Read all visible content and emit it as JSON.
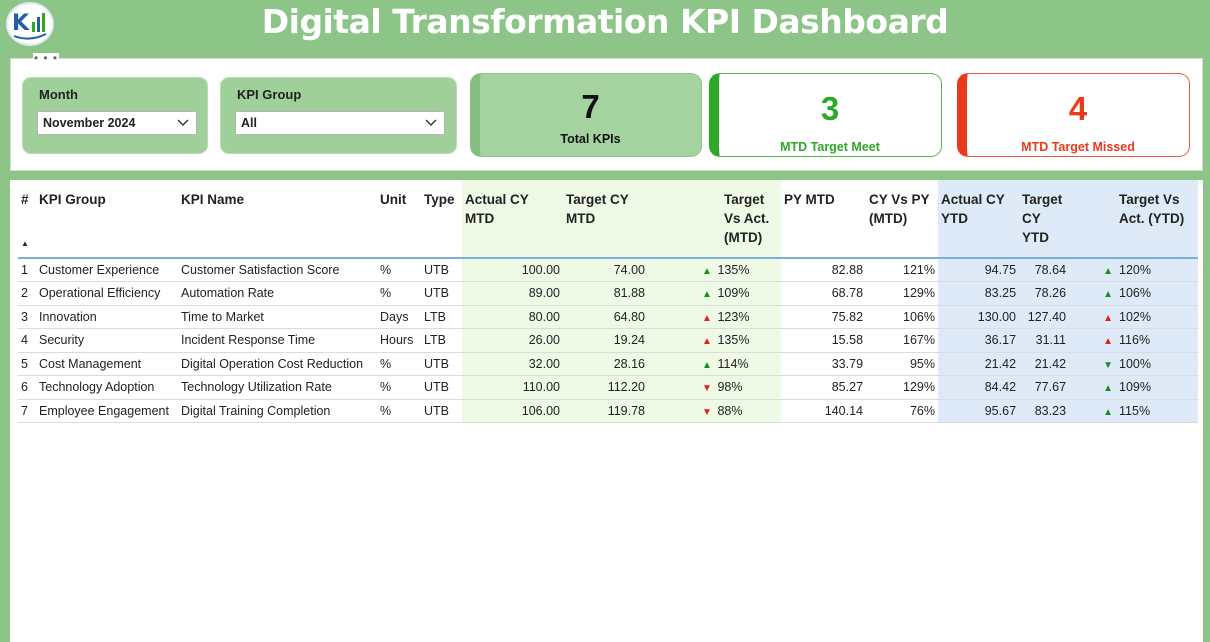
{
  "header": {
    "title": "Digital Transformation KPI Dashboard"
  },
  "filters": {
    "month": {
      "label": "Month",
      "value": "November 2024"
    },
    "kpi_group": {
      "label": "KPI Group",
      "value": "All"
    }
  },
  "cards": {
    "total": {
      "value": "7",
      "label": "Total KPIs"
    },
    "meet": {
      "value": "3",
      "label": "MTD Target Meet"
    },
    "missed": {
      "value": "4",
      "label": "MTD Target Missed"
    }
  },
  "table": {
    "columns": {
      "num": "#",
      "group": "KPI Group",
      "name": "KPI Name",
      "unit": "Unit",
      "type": "Type",
      "actual_mtd": "Actual CY MTD",
      "target_mtd": "Target CY MTD",
      "tva_mtd": "Target Vs Act. (MTD)",
      "py_mtd": "PY MTD",
      "cyvpy_mtd": "CY Vs PY (MTD)",
      "actual_ytd": "Actual CY YTD",
      "target_ytd": "Target CY YTD",
      "tva_ytd": "Target Vs Act. (YTD)"
    },
    "rows": [
      {
        "num": "1",
        "group": "Customer Experience",
        "name": "Customer Satisfaction Score",
        "unit": "%",
        "type": "UTB",
        "actual_mtd": "100.00",
        "target_mtd": "74.00",
        "mtd_arrow": "up-green",
        "tva_mtd": "135%",
        "py_mtd": "82.88",
        "cyvpy_mtd": "121%",
        "actual_ytd": "94.75",
        "target_ytd": "78.64",
        "ytd_arrow": "up-green",
        "tva_ytd": "120%"
      },
      {
        "num": "2",
        "group": "Operational Efficiency",
        "name": "Automation Rate",
        "unit": "%",
        "type": "UTB",
        "actual_mtd": "89.00",
        "target_mtd": "81.88",
        "mtd_arrow": "up-green",
        "tva_mtd": "109%",
        "py_mtd": "68.78",
        "cyvpy_mtd": "129%",
        "actual_ytd": "83.25",
        "target_ytd": "78.26",
        "ytd_arrow": "up-green",
        "tva_ytd": "106%"
      },
      {
        "num": "3",
        "group": "Innovation",
        "name": "Time to Market",
        "unit": "Days",
        "type": "LTB",
        "actual_mtd": "80.00",
        "target_mtd": "64.80",
        "mtd_arrow": "up-red",
        "tva_mtd": "123%",
        "py_mtd": "75.82",
        "cyvpy_mtd": "106%",
        "actual_ytd": "130.00",
        "target_ytd": "127.40",
        "ytd_arrow": "up-red",
        "tva_ytd": "102%"
      },
      {
        "num": "4",
        "group": "Security",
        "name": "Incident Response Time",
        "unit": "Hours",
        "type": "LTB",
        "actual_mtd": "26.00",
        "target_mtd": "19.24",
        "mtd_arrow": "up-red",
        "tva_mtd": "135%",
        "py_mtd": "15.58",
        "cyvpy_mtd": "167%",
        "actual_ytd": "36.17",
        "target_ytd": "31.11",
        "ytd_arrow": "up-red",
        "tva_ytd": "116%"
      },
      {
        "num": "5",
        "group": "Cost Management",
        "name": "Digital Operation Cost Reduction",
        "unit": "%",
        "type": "UTB",
        "actual_mtd": "32.00",
        "target_mtd": "28.16",
        "mtd_arrow": "up-green",
        "tva_mtd": "114%",
        "py_mtd": "33.79",
        "cyvpy_mtd": "95%",
        "actual_ytd": "21.42",
        "target_ytd": "21.42",
        "ytd_arrow": "down-green",
        "tva_ytd": "100%"
      },
      {
        "num": "6",
        "group": "Technology Adoption",
        "name": "Technology Utilization Rate",
        "unit": "%",
        "type": "UTB",
        "actual_mtd": "110.00",
        "target_mtd": "112.20",
        "mtd_arrow": "down-red",
        "tva_mtd": "98%",
        "py_mtd": "85.27",
        "cyvpy_mtd": "129%",
        "actual_ytd": "84.42",
        "target_ytd": "77.67",
        "ytd_arrow": "up-green",
        "tva_ytd": "109%"
      },
      {
        "num": "7",
        "group": "Employee Engagement",
        "name": "Digital Training Completion",
        "unit": "%",
        "type": "UTB",
        "actual_mtd": "106.00",
        "target_mtd": "119.78",
        "mtd_arrow": "down-red",
        "tva_mtd": "88%",
        "py_mtd": "140.14",
        "cyvpy_mtd": "76%",
        "actual_ytd": "95.67",
        "target_ytd": "83.23",
        "ytd_arrow": "up-green",
        "tva_ytd": "115%"
      }
    ]
  },
  "icons": {
    "logo": "kpi-logo-icon",
    "chevron": "chevron-down-icon",
    "arrow_up": "arrow-up-icon",
    "arrow_down": "arrow-down-icon",
    "sort": "sort-ascending-icon"
  },
  "colors": {
    "background": "#8cc587",
    "green": "#2fa827",
    "red": "#ea3a1c",
    "mtd_band": "#eef9e6",
    "ytd_band": "#deeaf7"
  }
}
